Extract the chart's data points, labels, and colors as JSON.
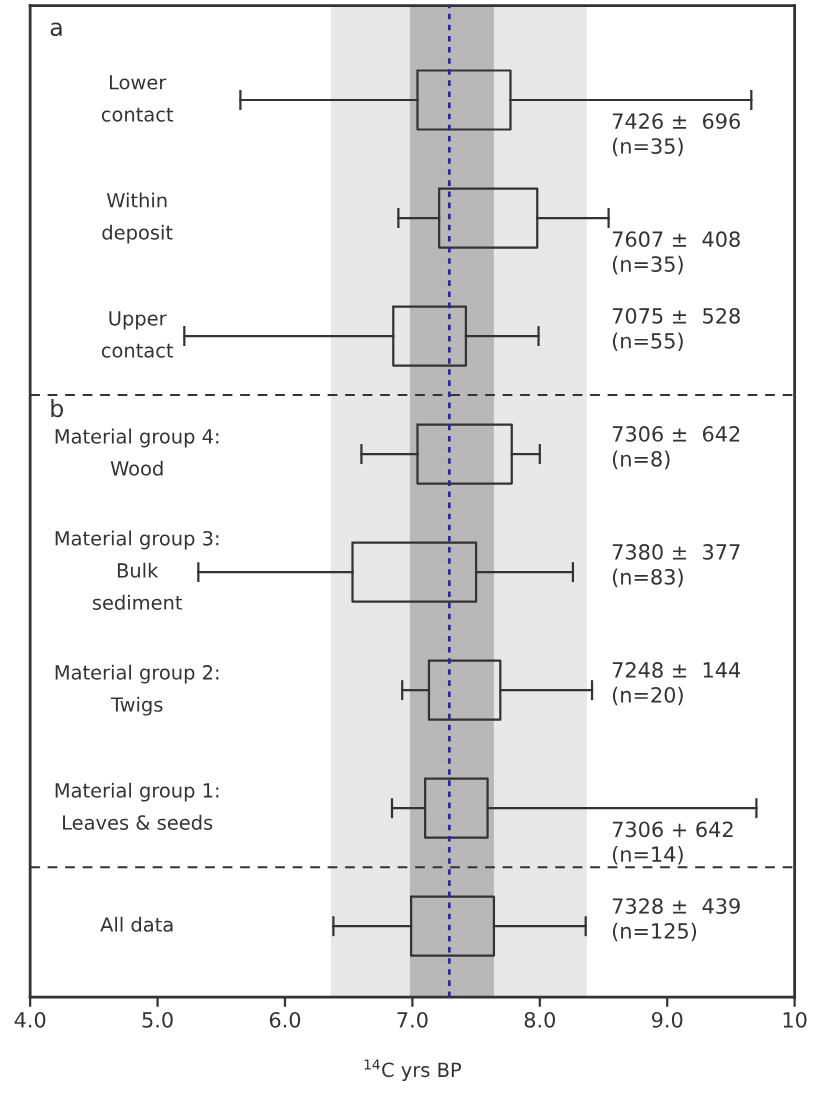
{
  "chart_data": {
    "type": "box",
    "orientation": "horizontal",
    "xlabel": "$^{14}$C yrs BP",
    "categories": [
      "Lower\ncontact",
      "Within\ndeposit",
      "Upper\ncontact",
      "Material group 4:\nWood",
      "Material group 3:\nBulk\nsediment",
      "Material group 2:\nTwigs",
      "Material group 1:\nLeaves & seeds",
      "All data"
    ],
    "boxes": [
      {
        "low": 5.65,
        "q1": 7.04,
        "median": null,
        "q3": 7.77,
        "high": 9.66
      },
      {
        "low": 6.89,
        "q1": 7.21,
        "median": null,
        "q3": 7.98,
        "high": 8.54
      },
      {
        "low": 5.21,
        "q1": 6.85,
        "median": null,
        "q3": 7.42,
        "high": 7.99
      },
      {
        "low": 6.6,
        "q1": 7.04,
        "median": null,
        "q3": 7.78,
        "high": 8.0
      },
      {
        "low": 5.32,
        "q1": 6.53,
        "median": null,
        "q3": 7.5,
        "high": 8.26
      },
      {
        "low": 6.92,
        "q1": 7.13,
        "median": null,
        "q3": 7.69,
        "high": 8.41
      },
      {
        "low": 6.84,
        "q1": 7.1,
        "median": null,
        "q3": 7.59,
        "high": 9.7
      },
      {
        "low": 6.38,
        "q1": 6.99,
        "median": null,
        "q3": 7.64,
        "high": 8.36
      }
    ],
    "value_labels": [
      "7426 ±  696\n(n=35)",
      "7607 ±  408\n(n=35)",
      "7075 ±  528\n(n=55)",
      "7306 ±  642\n(n=8)",
      "7380 ±  377\n(n=83)",
      "7248 ±  144\n(n=20)",
      "7306 + 642\n(n=14)",
      "7328 ±  439\n(n=125)"
    ],
    "xlim": [
      4,
      10
    ],
    "xticks": [
      {
        "value": 4,
        "label": "4.0"
      },
      {
        "value": 5,
        "label": "5.0"
      },
      {
        "value": 6,
        "label": "6.0"
      },
      {
        "value": 7,
        "label": "7.0"
      },
      {
        "value": 8,
        "label": "8.0"
      },
      {
        "value": 9,
        "label": "9.0"
      },
      10
    ],
    "bands": [
      {
        "axis": "x",
        "from": 6.36,
        "to": 8.37,
        "color": "#e8e8e8"
      },
      {
        "axis": "x",
        "from": 6.98,
        "to": 7.64,
        "color": "#b8b8b8"
      }
    ],
    "ref_lines": [
      {
        "axis": "x",
        "value": 7.29,
        "color": "#2a2a9a",
        "line_style": "dotted"
      }
    ],
    "annotations": [
      "a",
      "b"
    ],
    "grid": false,
    "legend": false
  }
}
